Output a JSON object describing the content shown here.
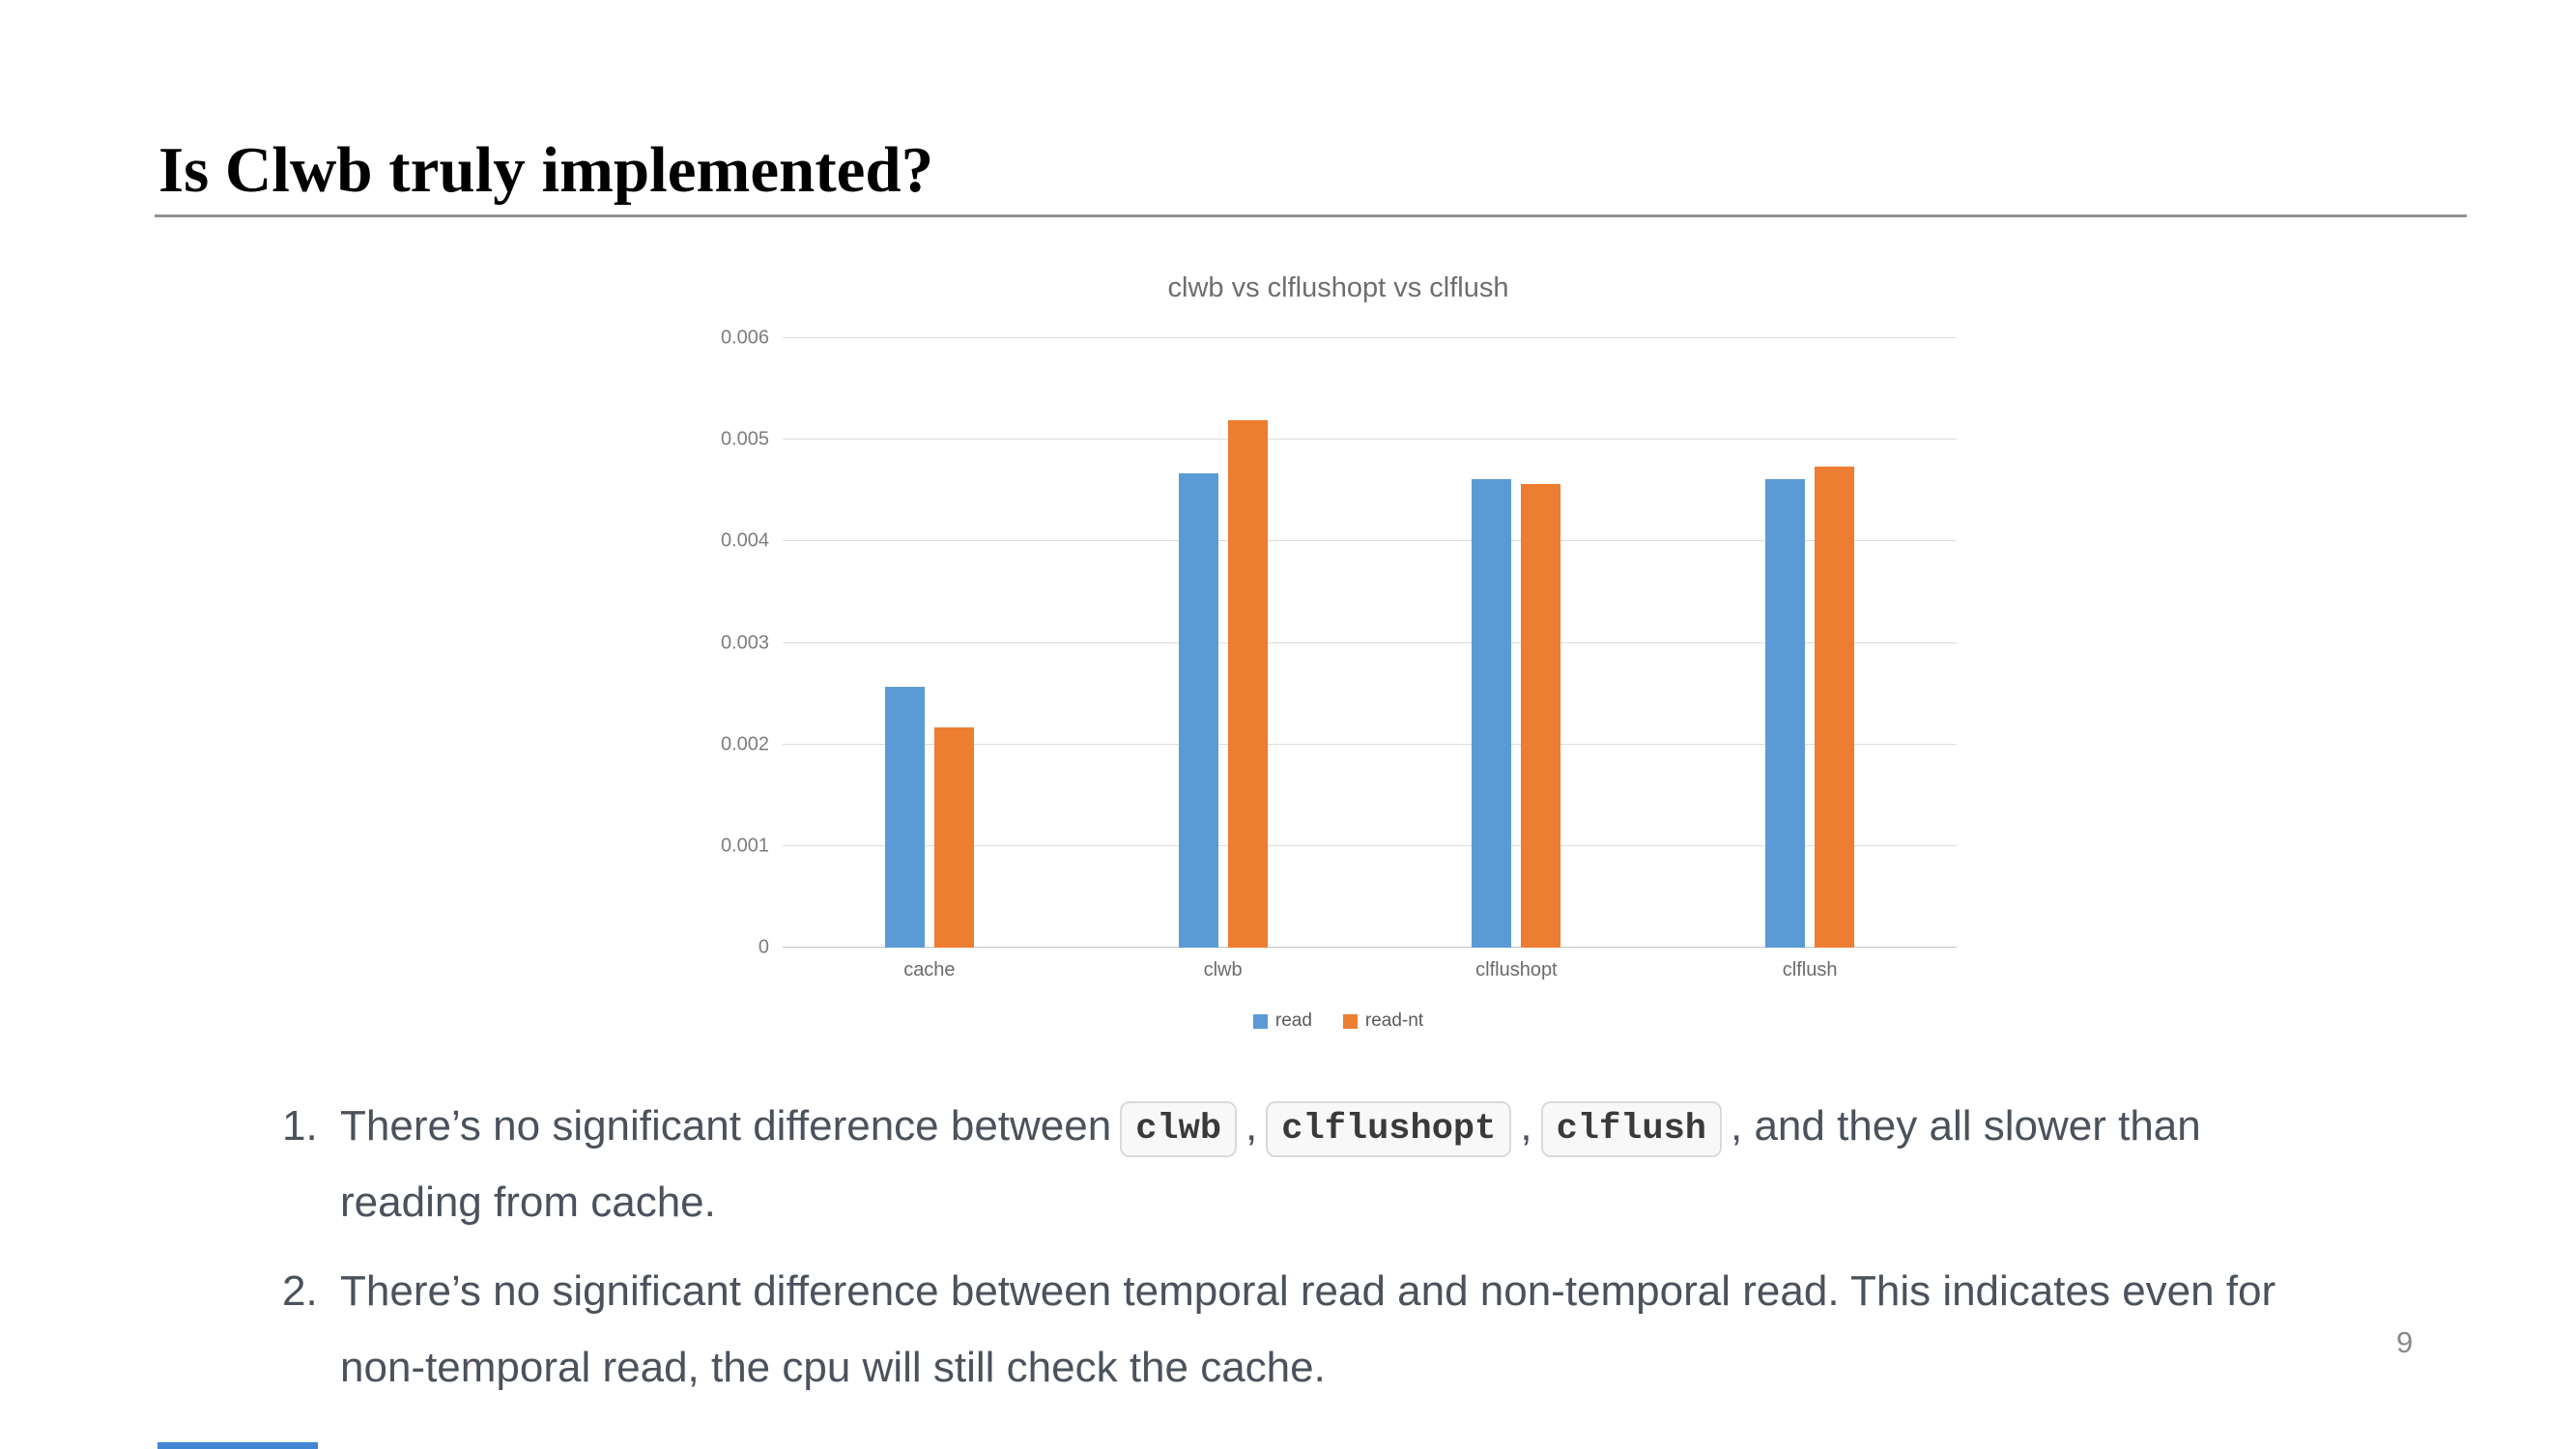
{
  "slide": {
    "title": "Is Clwb truly implemented?",
    "page_number": "9"
  },
  "chart_data": {
    "type": "bar",
    "title": "clwb vs clflushopt vs clflush",
    "categories": [
      "cache",
      "clwb",
      "clflushopt",
      "clflush"
    ],
    "series": [
      {
        "name": "read",
        "color": "#5b9bd5",
        "values": [
          0.00257,
          0.00467,
          0.00461,
          0.00461
        ]
      },
      {
        "name": "read-nt",
        "color": "#ed7d31",
        "values": [
          0.00217,
          0.00519,
          0.00456,
          0.00474
        ]
      }
    ],
    "xlabel": "",
    "ylabel": "",
    "ylim": [
      0,
      0.006
    ],
    "yticks": [
      "0",
      "0.001",
      "0.002",
      "0.003",
      "0.004",
      "0.005",
      "0.006"
    ],
    "grid": true,
    "legend_position": "bottom"
  },
  "notes": {
    "items": [
      {
        "number": "1.",
        "parts": [
          {
            "type": "text",
            "value": "There’s no significant difference between"
          },
          {
            "type": "code",
            "value": "clwb"
          },
          {
            "type": "text",
            "value": ","
          },
          {
            "type": "code",
            "value": "clflushopt"
          },
          {
            "type": "text",
            "value": ","
          },
          {
            "type": "code",
            "value": "clflush"
          },
          {
            "type": "text",
            "value": ", and they all slower than reading from cache."
          }
        ]
      },
      {
        "number": "2.",
        "parts": [
          {
            "type": "text",
            "value": "There’s no significant difference between temporal read and non-temporal read. This indicates even for non-temporal read, the cpu will still check the cache."
          }
        ]
      }
    ]
  },
  "footer": {
    "progress_color": "#4486d6"
  }
}
